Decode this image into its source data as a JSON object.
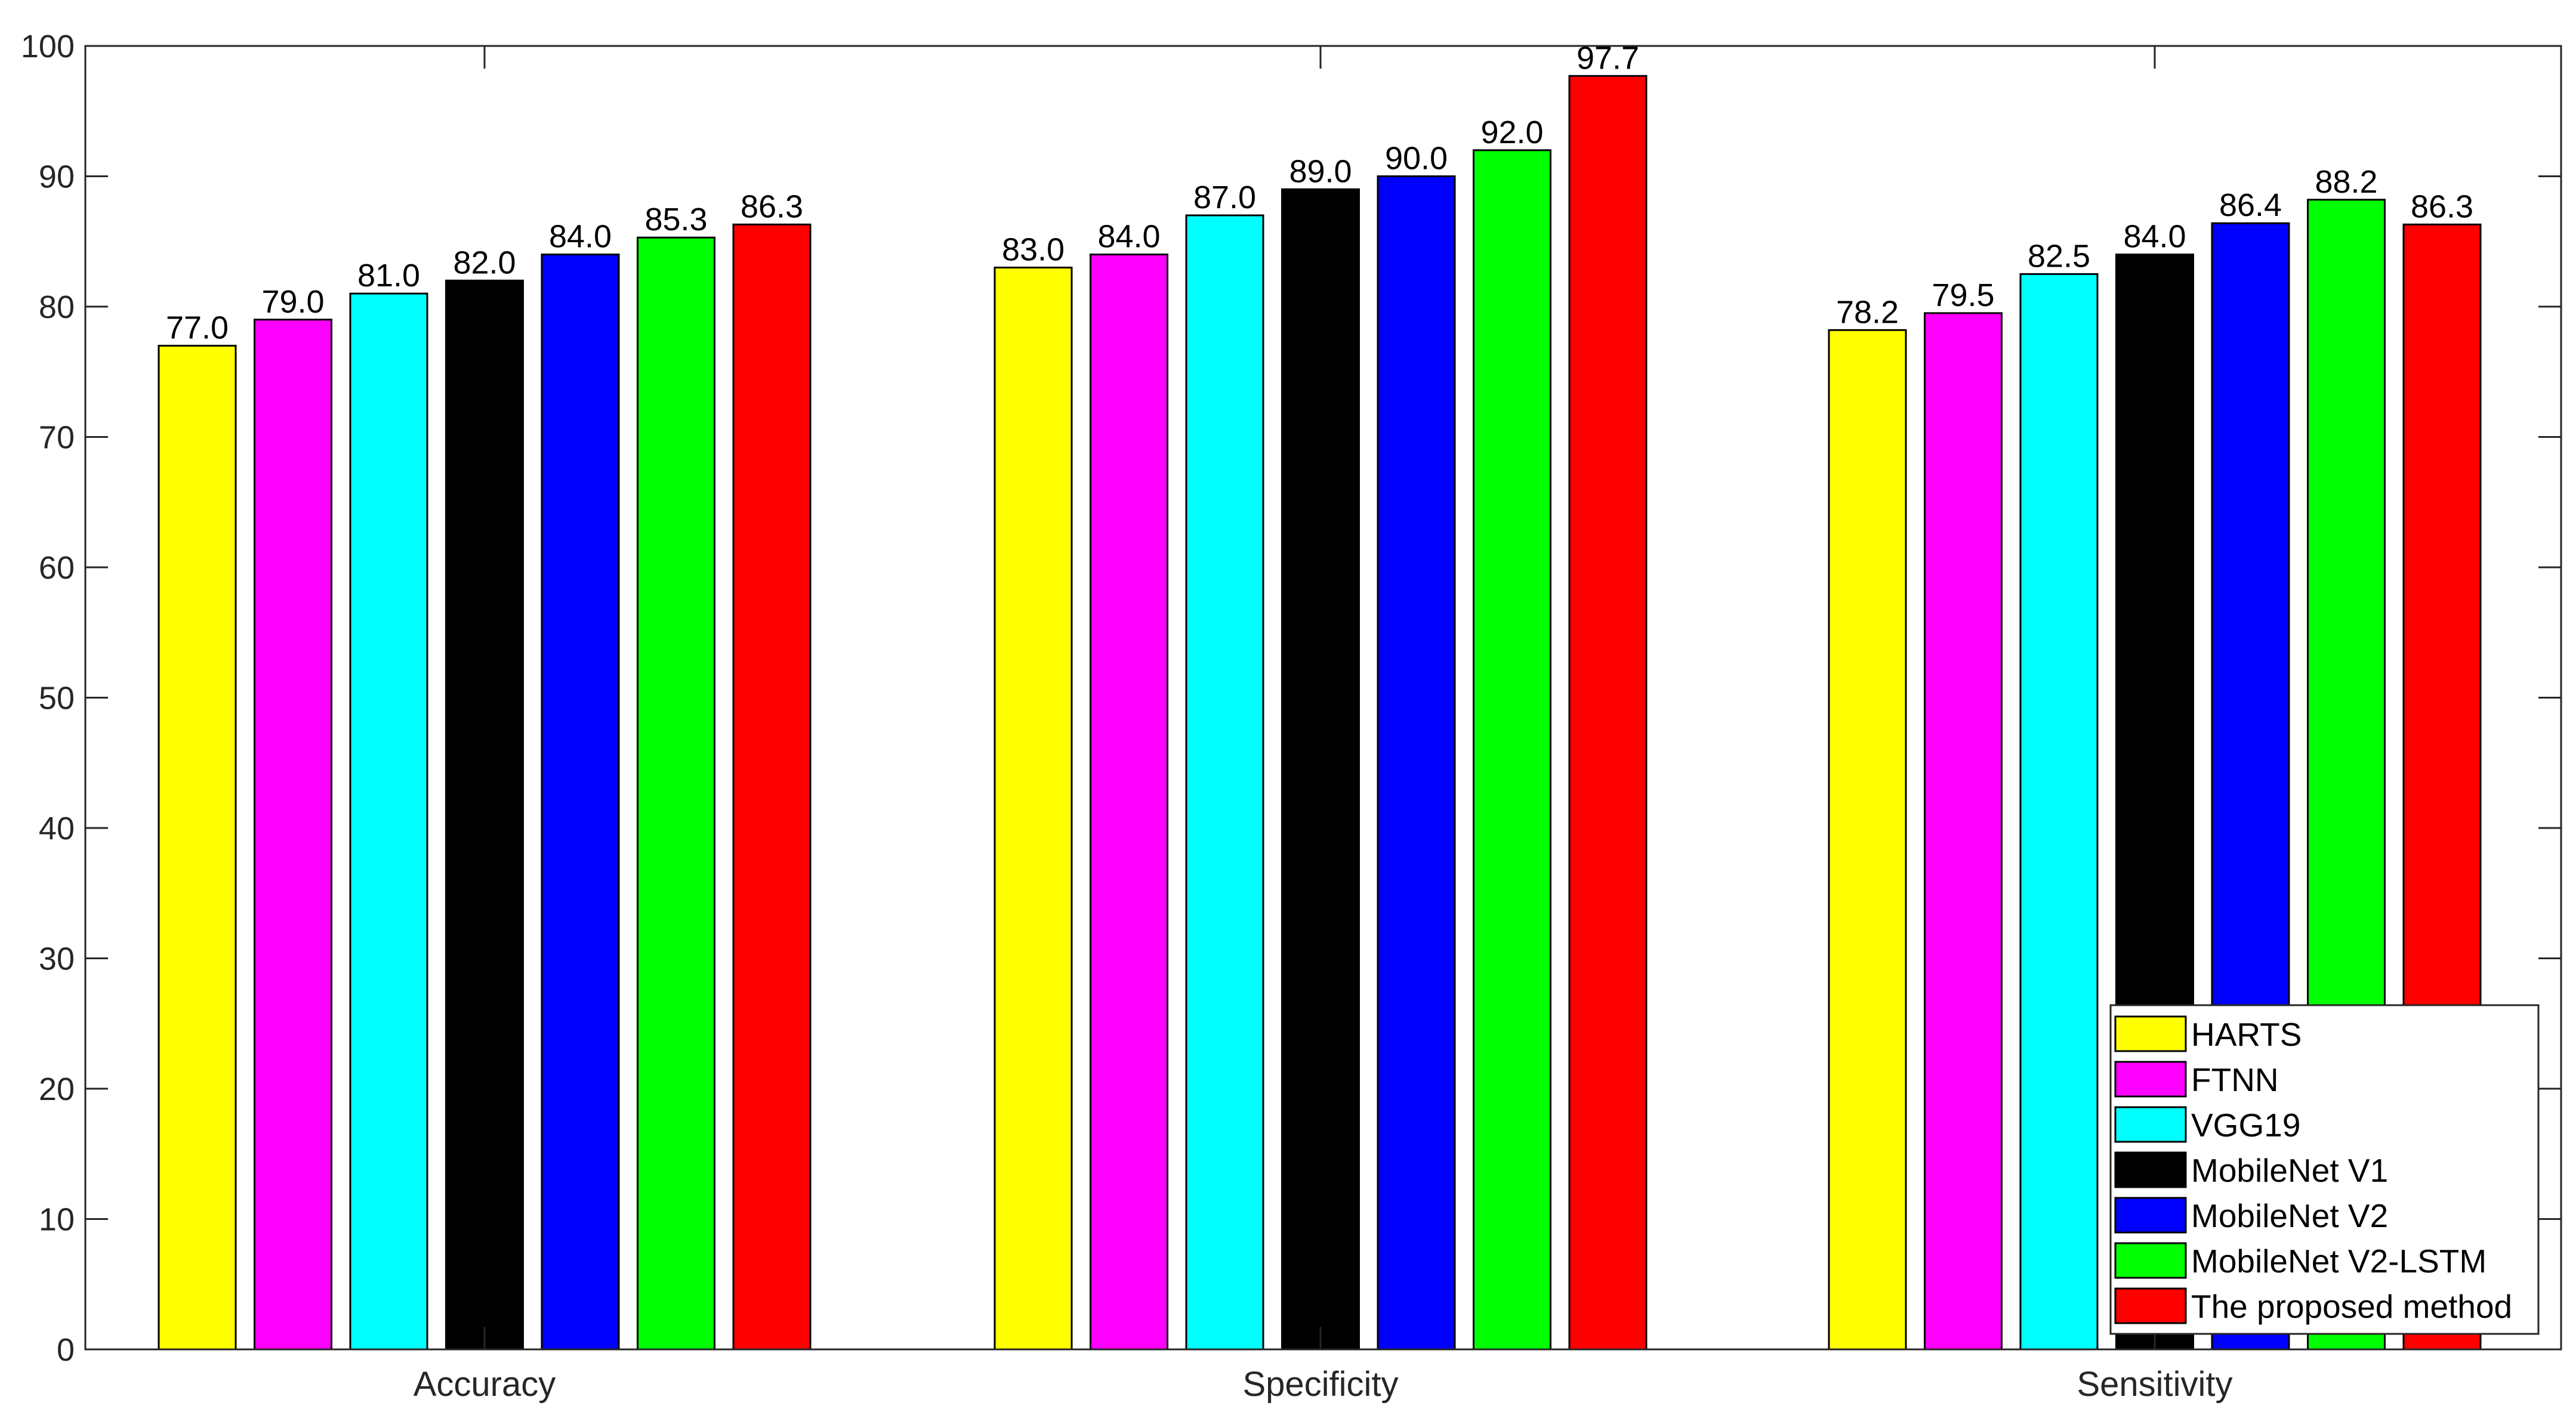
{
  "chart_data": {
    "type": "bar",
    "title": "",
    "xlabel": "",
    "ylabel": "",
    "ylim": [
      0,
      100
    ],
    "yticks": [
      0,
      10,
      20,
      30,
      40,
      50,
      60,
      70,
      80,
      90,
      100
    ],
    "categories": [
      "Accuracy",
      "Specificity",
      "Sensitivity"
    ],
    "grid": false,
    "legend_position": "bottom-right",
    "series": [
      {
        "name": "HARTS",
        "color": "#ffff00",
        "values": [
          77.0,
          83.0,
          78.2
        ],
        "labels": [
          "77.0",
          "83.0",
          "78.2"
        ]
      },
      {
        "name": "FTNN",
        "color": "#ff00ff",
        "values": [
          79.0,
          84.0,
          79.5
        ],
        "labels": [
          "79.0",
          "84.0",
          "79.5"
        ]
      },
      {
        "name": "VGG19",
        "color": "#00ffff",
        "values": [
          81.0,
          87.0,
          82.5
        ],
        "labels": [
          "81.0",
          "87.0",
          "82.5"
        ]
      },
      {
        "name": "MobileNet V1",
        "color": "#000000",
        "values": [
          82.0,
          89.0,
          84.0
        ],
        "labels": [
          "82.0",
          "89.0",
          "84.0"
        ]
      },
      {
        "name": "MobileNet V2",
        "color": "#0000ff",
        "values": [
          84.0,
          90.0,
          86.4
        ],
        "labels": [
          "84.0",
          "90.0",
          "86.4"
        ]
      },
      {
        "name": "MobileNet V2-LSTM",
        "color": "#00ff00",
        "values": [
          85.3,
          92.0,
          88.2
        ],
        "labels": [
          "85.3",
          "92.0",
          "88.2"
        ]
      },
      {
        "name": "The proposed method",
        "color": "#ff0000",
        "values": [
          86.3,
          97.7,
          86.3
        ],
        "labels": [
          "86.3",
          "97.7",
          "86.3"
        ]
      }
    ]
  }
}
